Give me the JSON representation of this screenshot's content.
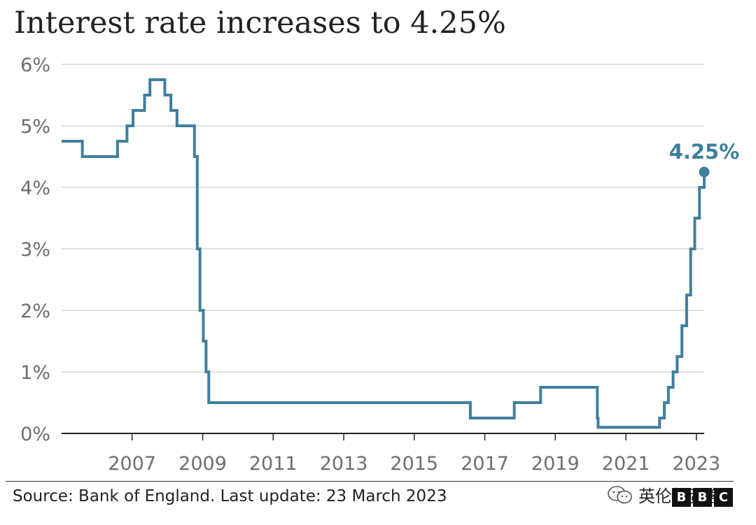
{
  "title": "Interest rate increases to 4.25%",
  "source": "Source: Bank of England. Last update: 23 March 2023",
  "watermark_text": "英伦投资客",
  "logo_text": "BBC",
  "colors": {
    "line": "#3f7f9c",
    "grid": "#cccccc",
    "baseline": "#222222",
    "text": "#222222",
    "tick": "#6e6e6e"
  },
  "chart_data": {
    "type": "line",
    "step": true,
    "title": "Interest rate increases to 4.25%",
    "xlabel": "",
    "ylabel": "",
    "xlim": [
      "2005-01-01",
      "2023-03-23"
    ],
    "ylim": [
      0,
      6
    ],
    "grid": true,
    "y_ticks": [
      0,
      1,
      2,
      3,
      4,
      5,
      6
    ],
    "y_tick_labels": [
      "0%",
      "1%",
      "2%",
      "3%",
      "4%",
      "5%",
      "6%"
    ],
    "x_ticks": [
      "2007",
      "2009",
      "2011",
      "2013",
      "2015",
      "2017",
      "2019",
      "2021",
      "2023"
    ],
    "series": [
      {
        "values": [
          {
            "date": "2005-01-01",
            "rate": 4.75
          },
          {
            "date": "2005-08-04",
            "rate": 4.5
          },
          {
            "date": "2006-08-03",
            "rate": 4.75
          },
          {
            "date": "2006-11-09",
            "rate": 5.0
          },
          {
            "date": "2007-01-11",
            "rate": 5.25
          },
          {
            "date": "2007-05-10",
            "rate": 5.5
          },
          {
            "date": "2007-07-05",
            "rate": 5.75
          },
          {
            "date": "2007-12-06",
            "rate": 5.5
          },
          {
            "date": "2008-02-07",
            "rate": 5.25
          },
          {
            "date": "2008-04-10",
            "rate": 5.0
          },
          {
            "date": "2008-10-08",
            "rate": 4.5
          },
          {
            "date": "2008-11-06",
            "rate": 3.0
          },
          {
            "date": "2008-12-04",
            "rate": 2.0
          },
          {
            "date": "2009-01-08",
            "rate": 1.5
          },
          {
            "date": "2009-02-05",
            "rate": 1.0
          },
          {
            "date": "2009-03-05",
            "rate": 0.5
          },
          {
            "date": "2016-08-04",
            "rate": 0.25
          },
          {
            "date": "2017-11-02",
            "rate": 0.5
          },
          {
            "date": "2018-08-02",
            "rate": 0.75
          },
          {
            "date": "2020-03-11",
            "rate": 0.25
          },
          {
            "date": "2020-03-19",
            "rate": 0.1
          },
          {
            "date": "2021-12-16",
            "rate": 0.25
          },
          {
            "date": "2022-02-03",
            "rate": 0.5
          },
          {
            "date": "2022-03-17",
            "rate": 0.75
          },
          {
            "date": "2022-05-05",
            "rate": 1.0
          },
          {
            "date": "2022-06-16",
            "rate": 1.25
          },
          {
            "date": "2022-08-04",
            "rate": 1.75
          },
          {
            "date": "2022-09-22",
            "rate": 2.25
          },
          {
            "date": "2022-11-03",
            "rate": 3.0
          },
          {
            "date": "2022-12-15",
            "rate": 3.5
          },
          {
            "date": "2023-02-02",
            "rate": 4.0
          },
          {
            "date": "2023-03-23",
            "rate": 4.25
          }
        ]
      }
    ],
    "end_label": "4.25%"
  }
}
